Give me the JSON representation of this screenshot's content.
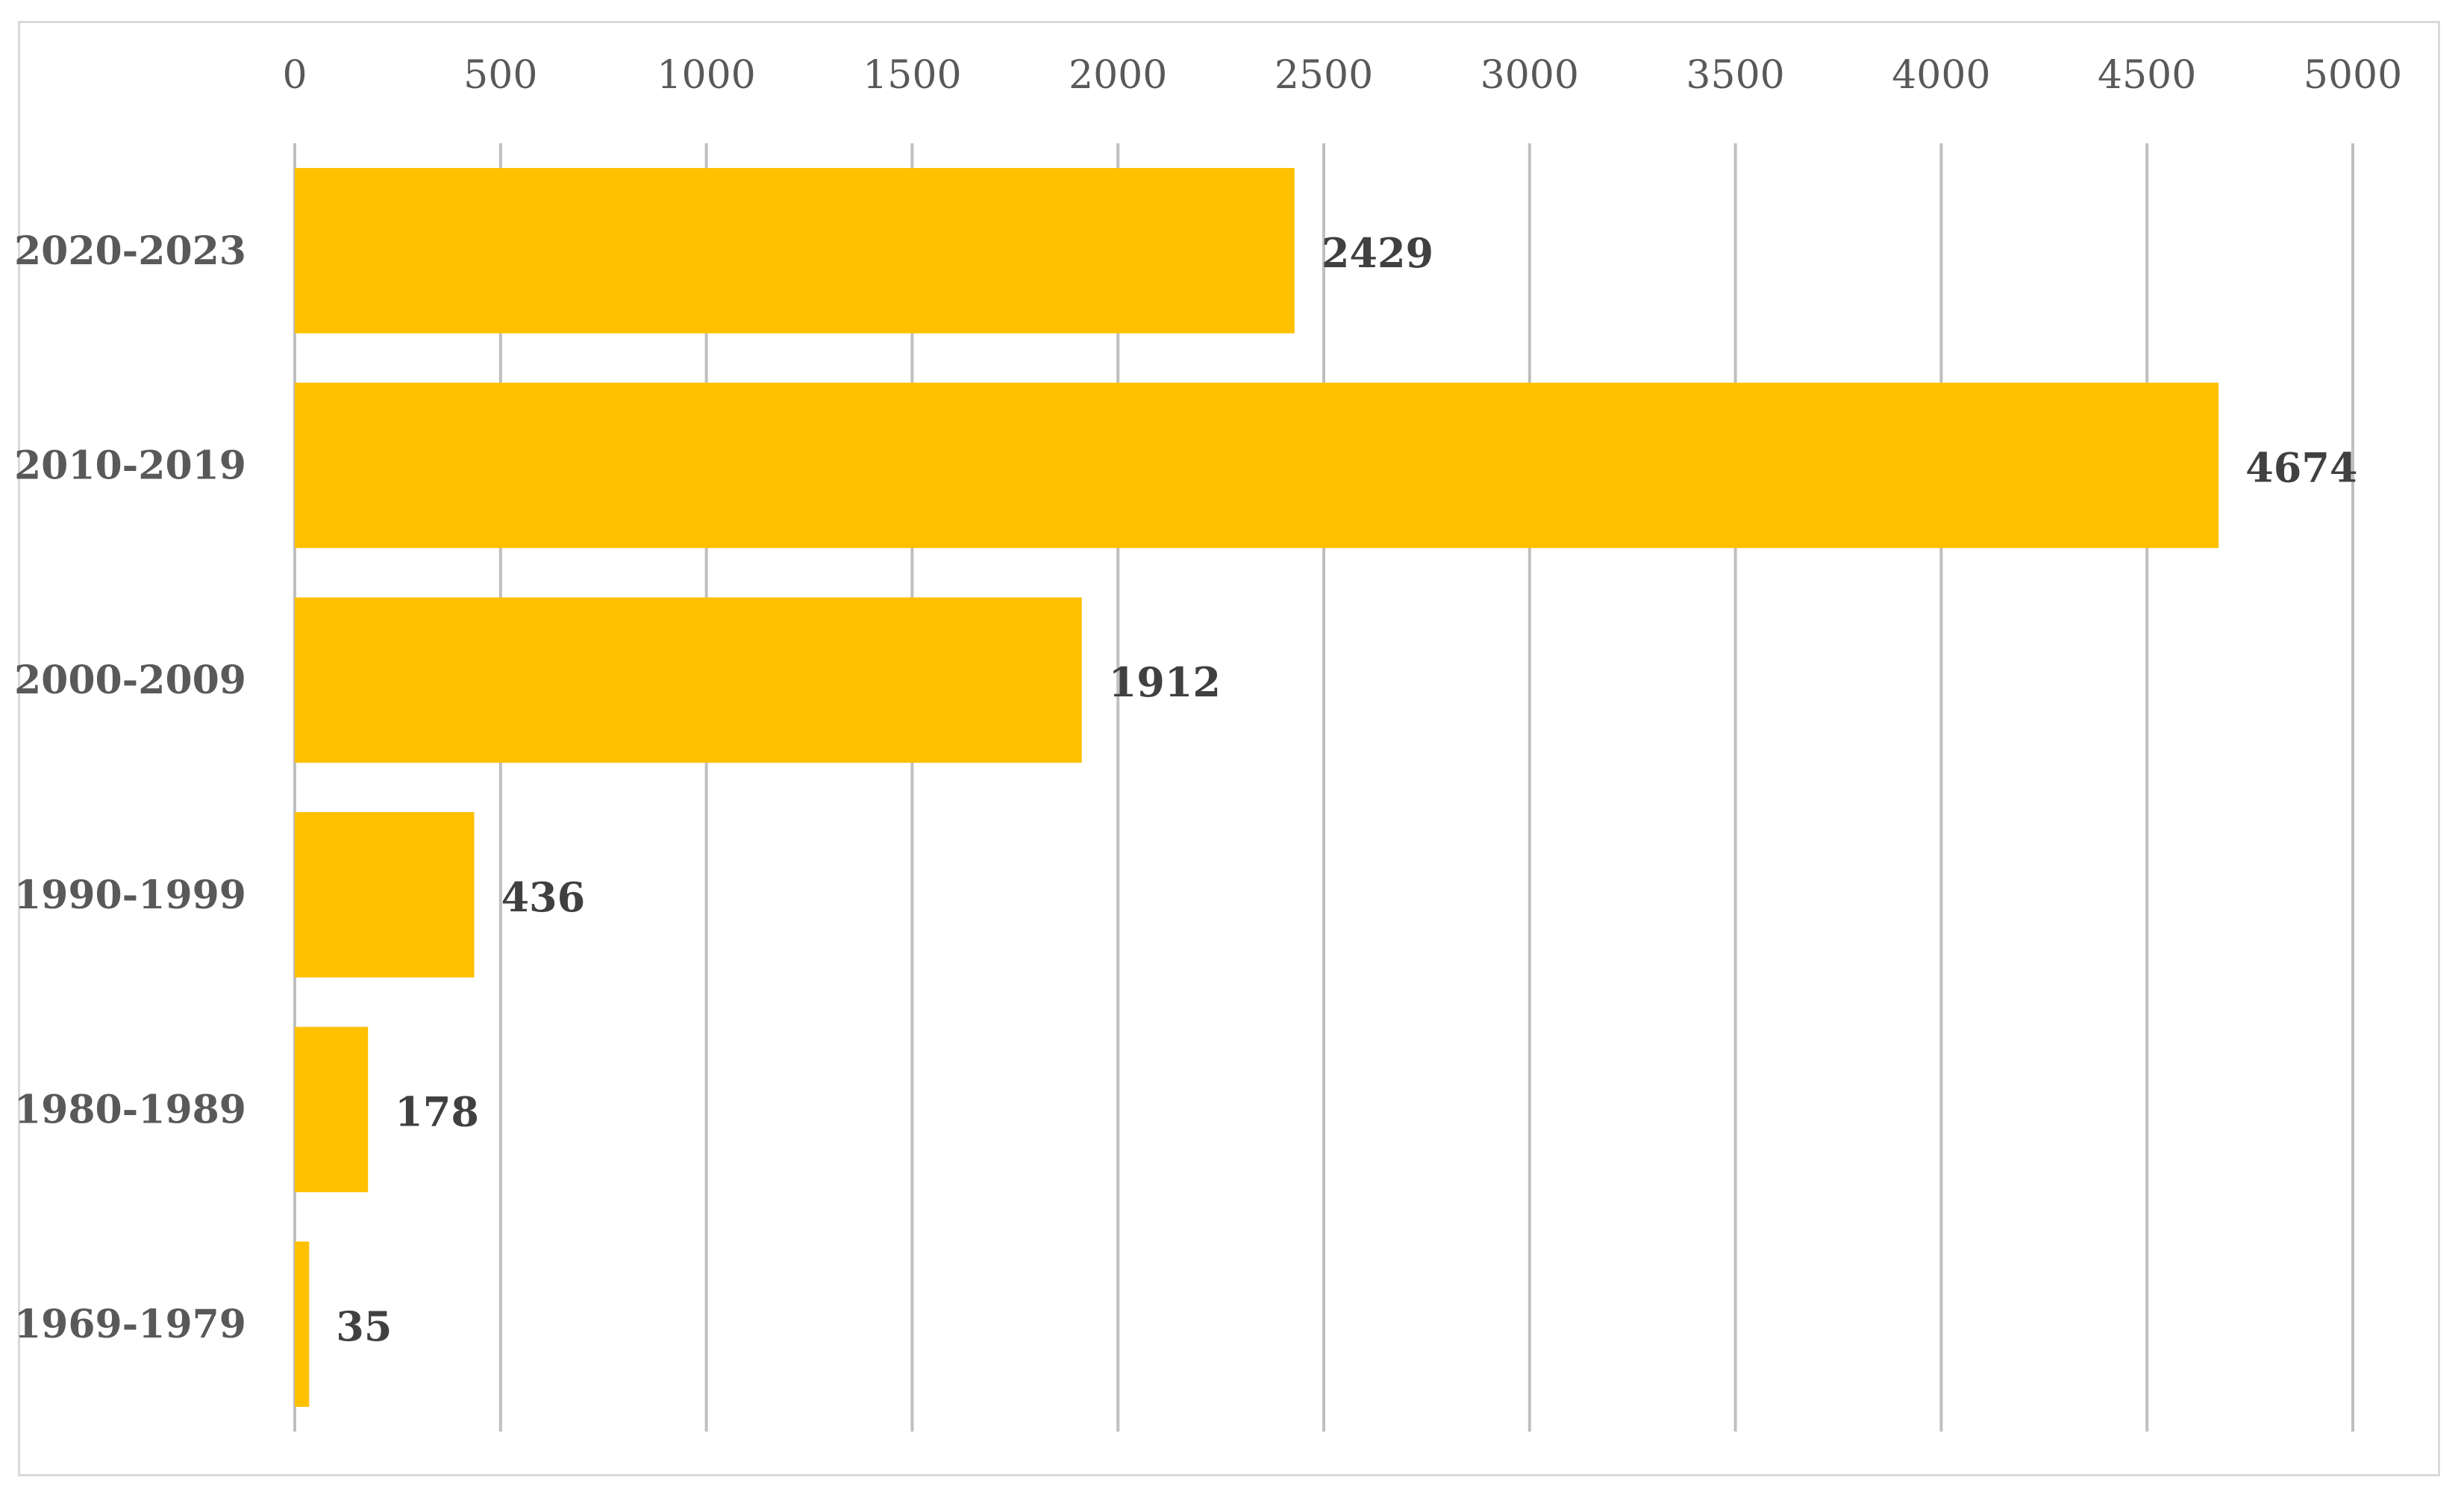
{
  "chart_data": {
    "type": "bar",
    "orientation": "horizontal",
    "categories": [
      "2020-2023",
      "2010-2019",
      "2000-2009",
      "1990-1999",
      "1980-1989",
      "1969-1979"
    ],
    "values": [
      2429,
      4674,
      1912,
      436,
      178,
      35
    ],
    "title": "",
    "xlabel": "",
    "ylabel": "",
    "xlim": [
      0,
      5000
    ],
    "x_ticks": [
      "0",
      "500",
      "1000",
      "1500",
      "2000",
      "2500",
      "3000",
      "3500",
      "4000",
      "4500",
      "5000"
    ],
    "x_axis_position": "top",
    "grid": true,
    "legend": "none",
    "data_labels": true,
    "bar_color": "#FFC000",
    "grid_color": "#BFBFBF"
  }
}
